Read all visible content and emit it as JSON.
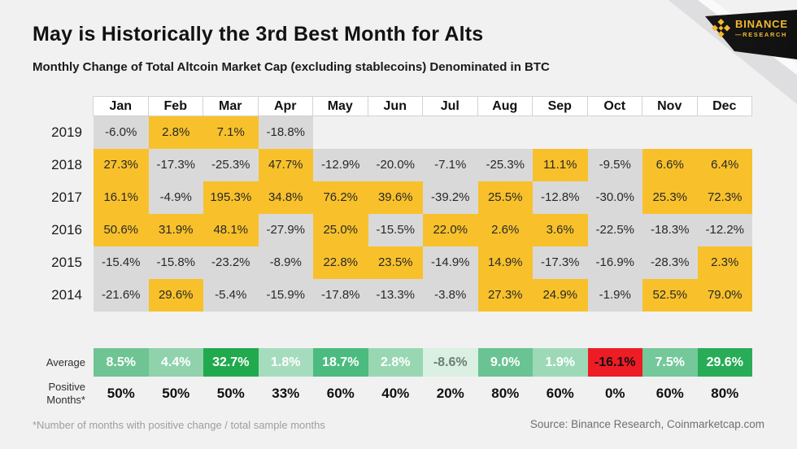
{
  "header": {
    "title": "May is Historically the 3rd Best Month for Alts",
    "subtitle": "Monthly Change of Total Altcoin Market Cap (excluding stablecoins) Denominated in BTC"
  },
  "brand": {
    "name": "BINANCE",
    "sub": "—RESEARCH",
    "color": "#F3BA2F"
  },
  "footer": {
    "footnote": "*Number of months with positive change / total sample months",
    "source": "Source: Binance Research, Coinmarketcap.com"
  },
  "colors": {
    "background": "#F1F1F2",
    "positive_cell": "#F8C12B",
    "negative_cell": "#D9D9DA",
    "red_cell": "#EE1C25"
  },
  "chart_data": {
    "type": "heatmap",
    "title": "May is Historically the 3rd Best Month for Alts",
    "subtitle": "Monthly Change of Total Altcoin Market Cap (excluding stablecoins) Denominated in BTC",
    "columns": [
      "Jan",
      "Feb",
      "Mar",
      "Apr",
      "May",
      "Jun",
      "Jul",
      "Aug",
      "Sep",
      "Oct",
      "Nov",
      "Dec"
    ],
    "rows": [
      {
        "year": "2019",
        "values": [
          "-6.0%",
          "2.8%",
          "7.1%",
          "-18.8%",
          null,
          null,
          null,
          null,
          null,
          null,
          null,
          null
        ]
      },
      {
        "year": "2018",
        "values": [
          "27.3%",
          "-17.3%",
          "-25.3%",
          "47.7%",
          "-12.9%",
          "-20.0%",
          "-7.1%",
          "-25.3%",
          "11.1%",
          "-9.5%",
          "6.6%",
          "6.4%"
        ]
      },
      {
        "year": "2017",
        "values": [
          "16.1%",
          "-4.9%",
          "195.3%",
          "34.8%",
          "76.2%",
          "39.6%",
          "-39.2%",
          "25.5%",
          "-12.8%",
          "-30.0%",
          "25.3%",
          "72.3%"
        ]
      },
      {
        "year": "2016",
        "values": [
          "50.6%",
          "31.9%",
          "48.1%",
          "-27.9%",
          "25.0%",
          "-15.5%",
          "22.0%",
          "2.6%",
          "3.6%",
          "-22.5%",
          "-18.3%",
          "-12.2%"
        ]
      },
      {
        "year": "2015",
        "values": [
          "-15.4%",
          "-15.8%",
          "-23.2%",
          "-8.9%",
          "22.8%",
          "23.5%",
          "-14.9%",
          "14.9%",
          "-17.3%",
          "-16.9%",
          "-28.3%",
          "2.3%"
        ]
      },
      {
        "year": "2014",
        "values": [
          "-21.6%",
          "29.6%",
          "-5.4%",
          "-15.9%",
          "-17.8%",
          "-13.3%",
          "-3.8%",
          "27.3%",
          "24.9%",
          "-1.9%",
          "52.5%",
          "79.0%"
        ]
      }
    ],
    "average": {
      "label": "Average",
      "values": [
        "8.5%",
        "4.4%",
        "32.7%",
        "1.8%",
        "18.7%",
        "2.8%",
        "-8.6%",
        "9.0%",
        "1.9%",
        "-16.1%",
        "7.5%",
        "29.6%"
      ],
      "fills": [
        "#6FC493",
        "#8FD2AC",
        "#21A94E",
        "#A6DCBE",
        "#4CBB7F",
        "#98D7B2",
        "#D9F0E2",
        "#6AC392",
        "#9ED9B7",
        "#EE1C25",
        "#74C89A",
        "#29AC57"
      ],
      "text_colors": [
        "#ffffff",
        "#ffffff",
        "#ffffff",
        "#ffffff",
        "#ffffff",
        "#ffffff",
        "#6F7E74",
        "#ffffff",
        "#ffffff",
        "#111111",
        "#ffffff",
        "#ffffff"
      ]
    },
    "positive_months": {
      "label": "Positive\nMonths*",
      "values": [
        "50%",
        "50%",
        "50%",
        "33%",
        "60%",
        "40%",
        "20%",
        "80%",
        "60%",
        "0%",
        "60%",
        "80%"
      ]
    }
  }
}
